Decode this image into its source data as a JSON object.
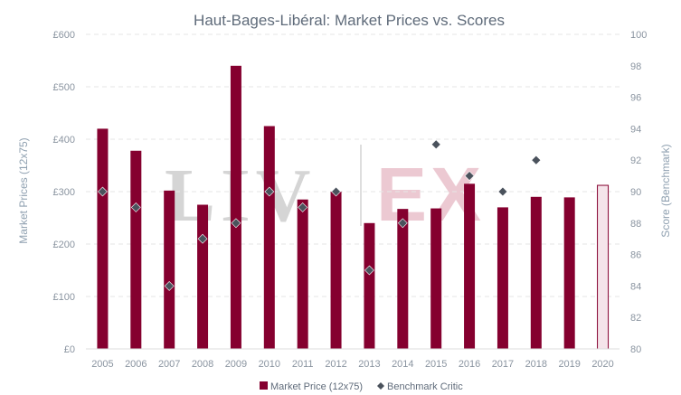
{
  "chart_data": {
    "type": "bar",
    "title": "Haut-Bages-Libéral: Market Prices vs. Scores",
    "categories": [
      "2005",
      "2006",
      "2007",
      "2008",
      "2009",
      "2010",
      "2011",
      "2012",
      "2013",
      "2014",
      "2015",
      "2016",
      "2017",
      "2018",
      "2019",
      "2020"
    ],
    "series": [
      {
        "name": "Market Price (12x75)",
        "type": "bar",
        "axis": "left",
        "values": [
          420,
          378,
          302,
          275,
          540,
          425,
          285,
          300,
          240,
          267,
          268,
          315,
          270,
          290,
          289,
          312
        ],
        "highlight_last_outline": true
      },
      {
        "name": "Benchmark Critic",
        "type": "scatter",
        "axis": "right",
        "values": [
          90,
          89,
          84,
          87,
          88,
          90,
          89,
          90,
          85,
          88,
          93,
          91,
          90,
          92,
          null,
          null
        ]
      }
    ],
    "left_axis": {
      "label": "Market Prices (12x75)",
      "min": 0,
      "max": 600,
      "step": 100,
      "ticks": [
        "£0",
        "£100",
        "£200",
        "£300",
        "£400",
        "£500",
        "£600"
      ]
    },
    "right_axis": {
      "label": "Score (Benchmark)",
      "min": 80,
      "max": 100,
      "step": 2,
      "ticks": [
        "80",
        "82",
        "84",
        "86",
        "88",
        "90",
        "92",
        "94",
        "96",
        "98",
        "100"
      ]
    },
    "grid": true,
    "legend_position": "bottom",
    "watermark": {
      "left": "LIV",
      "right": "EX"
    },
    "colors": {
      "bar": "#85002f",
      "bar_last_fill": "#f5e4ea",
      "marker": "#4a525c",
      "grid": "#e6e6e6",
      "text": "#8a94a0",
      "title": "#5f6b7a"
    }
  }
}
